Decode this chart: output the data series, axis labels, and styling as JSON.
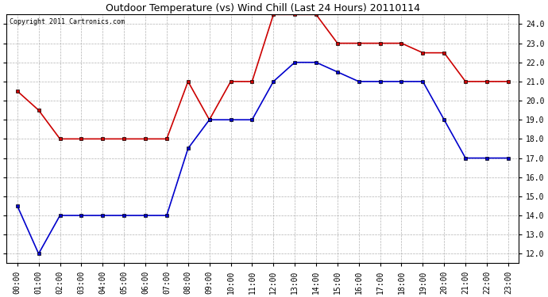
{
  "title": "Outdoor Temperature (vs) Wind Chill (Last 24 Hours) 20110114",
  "copyright": "Copyright 2011 Cartronics.com",
  "hours": [
    "00:00",
    "01:00",
    "02:00",
    "03:00",
    "04:00",
    "05:00",
    "06:00",
    "07:00",
    "08:00",
    "09:00",
    "10:00",
    "11:00",
    "12:00",
    "13:00",
    "14:00",
    "15:00",
    "16:00",
    "17:00",
    "18:00",
    "19:00",
    "20:00",
    "21:00",
    "22:00",
    "23:00"
  ],
  "red_data": [
    20.5,
    19.5,
    18.0,
    18.0,
    18.0,
    18.0,
    18.0,
    18.0,
    21.0,
    19.0,
    21.0,
    21.0,
    24.5,
    24.5,
    24.5,
    23.0,
    23.0,
    23.0,
    23.0,
    22.5,
    22.5,
    21.0,
    21.0,
    21.0
  ],
  "blue_data": [
    14.5,
    12.0,
    14.0,
    14.0,
    14.0,
    14.0,
    14.0,
    14.0,
    17.5,
    19.0,
    19.0,
    19.0,
    21.0,
    22.0,
    22.0,
    21.5,
    21.0,
    21.0,
    21.0,
    21.0,
    19.0,
    17.0,
    17.0,
    17.0
  ],
  "red_color": "#cc0000",
  "blue_color": "#0000cc",
  "plot_bg_color": "#ffffff",
  "fig_bg_color": "#ffffff",
  "grid_color": "#aaaaaa",
  "ytick_min": 12.0,
  "ytick_max": 24.0,
  "ytick_step": 1.0,
  "title_fontsize": 9,
  "tick_fontsize": 7,
  "copyright_fontsize": 6
}
